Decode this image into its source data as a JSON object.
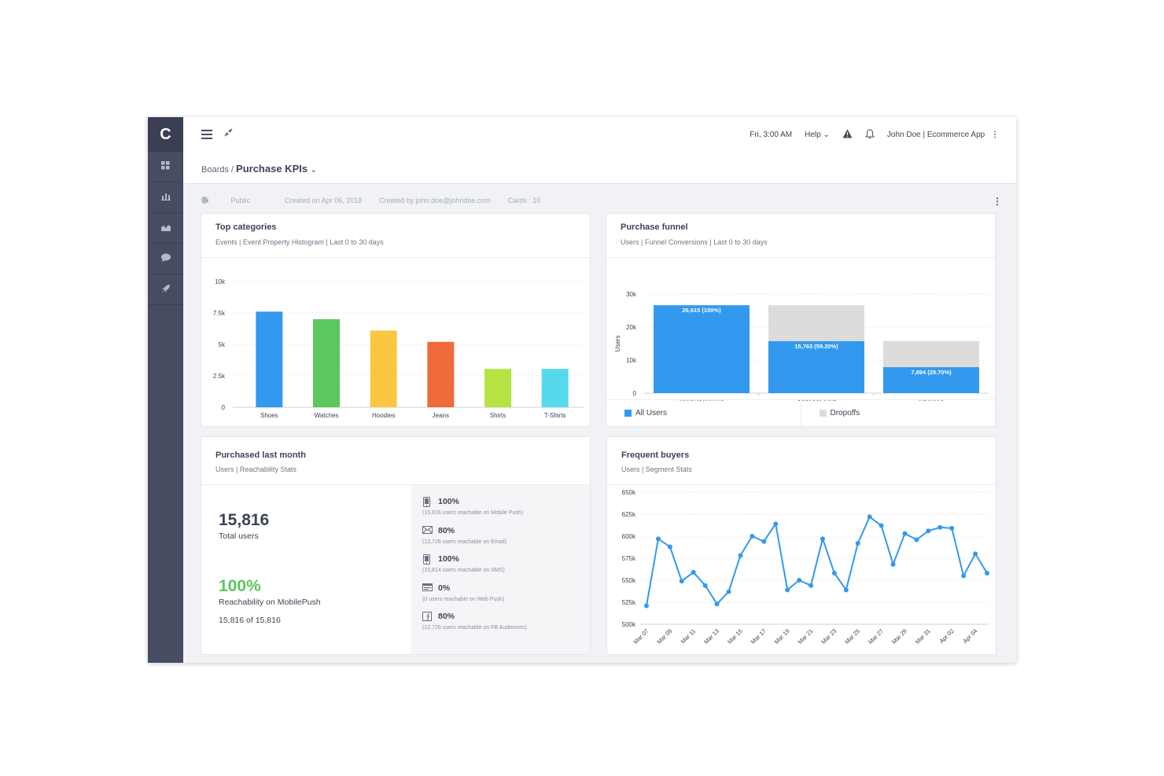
{
  "app": {
    "logo": "C"
  },
  "sidebar": {
    "icons": [
      "dashboard-icon",
      "bar-chart-icon",
      "area-chart-icon",
      "chat-icon",
      "rocket-icon"
    ]
  },
  "topbar": {
    "datetime": "Fri, 3:00 AM",
    "help": "Help",
    "user": "John Doe | Ecommerce App"
  },
  "breadcrumb": {
    "root": "Boards /",
    "current": "Purchase KPIs"
  },
  "meta": {
    "visibility": "Public",
    "created_on": "Created on Apr 06, 2018",
    "created_by": "Created by john.doe@johndoe.com",
    "cards": "Cards : 10"
  },
  "cards": {
    "top_categories": {
      "title": "Top categories",
      "subtitle": "Events | Event Property Histogram | Last 0 to 30 days"
    },
    "purchase_funnel": {
      "title": "Purchase funnel",
      "subtitle": "Users | Funnel Conversions | Last 0 to 30 days",
      "legend": [
        "All Users",
        "Dropoffs"
      ]
    },
    "purchased_last_month": {
      "title": "Purchased last month",
      "subtitle": "Users | Reachability Stats",
      "total": "15,816",
      "total_label": "Total users",
      "reach_pct": "100%",
      "reach_label": "Reachability on MobilePush",
      "reach_count": "15,816 of 15,816",
      "channels": [
        {
          "icon": "mobile-icon",
          "pct": "100%",
          "desc": "(15,816 users reachable on Mobile Push)"
        },
        {
          "icon": "email-icon",
          "pct": "80%",
          "desc": "(12,726 users reachable on Email)"
        },
        {
          "icon": "sms-icon",
          "pct": "100%",
          "desc": "(15,814 users reachable on SMS)"
        },
        {
          "icon": "web-push-icon",
          "pct": "0%",
          "desc": "(0 users reachable on Web Push)"
        },
        {
          "icon": "facebook-icon",
          "pct": "80%",
          "desc": "(12,726 users reachable on FB Audiences)"
        }
      ]
    },
    "frequent_buyers": {
      "title": "Frequent buyers",
      "subtitle": "Users | Segment Stats"
    }
  },
  "chart_data": [
    {
      "type": "bar",
      "categories": [
        "Shoes",
        "Watches",
        "Hoodies",
        "Jeans",
        "Shirts",
        "T-Shirts"
      ],
      "values": [
        7600,
        7000,
        6100,
        5200,
        3050,
        3050
      ],
      "colors": [
        "#3399ee",
        "#5ac85e",
        "#fac743",
        "#ef6b3a",
        "#b6e243",
        "#57d9ec"
      ],
      "yticks": [
        "0",
        "2.5k",
        "5k",
        "7.5k",
        "10k"
      ],
      "ylim": [
        0,
        10000
      ],
      "grid": true
    },
    {
      "type": "bar",
      "categories": [
        "Product Viewed",
        "Added to Cart",
        "Charged"
      ],
      "series": [
        {
          "name": "All Users",
          "values": [
            26615,
            15763,
            7894
          ],
          "color": "#3399ee"
        },
        {
          "name": "Dropoffs",
          "values": [
            0,
            10852,
            7869
          ],
          "color": "#dcdcdc"
        }
      ],
      "data_labels": [
        "26,615 (100%)",
        "15,763 (59.20%)",
        "7,894 (29.70%)"
      ],
      "ylabel": "Users",
      "yticks": [
        "0",
        "10k",
        "20k",
        "30k"
      ],
      "ylim": [
        0,
        30000
      ],
      "grid": true
    },
    {
      "type": "line",
      "x": [
        "Mar 07",
        "Mar 08",
        "Mar 09",
        "Mar 10",
        "Mar 11",
        "Mar 12",
        "Mar 13",
        "Mar 14",
        "Mar 15",
        "Mar 16",
        "Mar 17",
        "Mar 18",
        "Mar 19",
        "Mar 20",
        "Mar 21",
        "Mar 22",
        "Mar 23",
        "Mar 24",
        "Mar 25",
        "Mar 26",
        "Mar 27",
        "Mar 28",
        "Mar 29",
        "Mar 30",
        "Mar 31",
        "Apr 01",
        "Apr 02",
        "Apr 03",
        "Apr 04",
        "Apr 05"
      ],
      "xticks": [
        "Mar 07",
        "Mar 09",
        "Mar 11",
        "Mar 13",
        "Mar 15",
        "Mar 17",
        "Mar 19",
        "Mar 21",
        "Mar 23",
        "Mar 25",
        "Mar 27",
        "Mar 29",
        "Mar 31",
        "Apr 02",
        "Apr 04"
      ],
      "values": [
        521000,
        597000,
        588000,
        549000,
        559000,
        544000,
        523000,
        537000,
        578000,
        600000,
        594000,
        614000,
        539000,
        550000,
        544000,
        597000,
        558000,
        539000,
        592000,
        622000,
        612000,
        568000,
        603000,
        596000,
        606000,
        610000,
        609000,
        555000,
        580000,
        558000
      ],
      "color": "#3399ee",
      "yticks": [
        "500k",
        "525k",
        "550k",
        "575k",
        "600k",
        "625k",
        "650k"
      ],
      "ylim": [
        500000,
        650000
      ],
      "grid": true
    }
  ]
}
